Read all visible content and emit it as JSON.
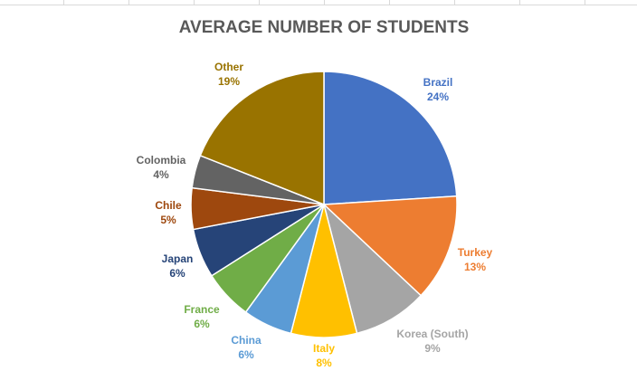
{
  "chart_data": {
    "type": "pie",
    "title": "AVERAGE NUMBER OF STUDENTS",
    "slices": [
      {
        "label": "Brazil",
        "value": 24,
        "value_label": "24%",
        "color": "#4472C4"
      },
      {
        "label": "Turkey",
        "value": 13,
        "value_label": "13%",
        "color": "#ED7D31"
      },
      {
        "label": "Korea (South)",
        "value": 9,
        "value_label": "9%",
        "color": "#A5A5A5"
      },
      {
        "label": "Italy",
        "value": 8,
        "value_label": "8%",
        "color": "#FFC000"
      },
      {
        "label": "China",
        "value": 6,
        "value_label": "6%",
        "color": "#5B9BD5"
      },
      {
        "label": "France",
        "value": 6,
        "value_label": "6%",
        "color": "#70AD47"
      },
      {
        "label": "Japan",
        "value": 6,
        "value_label": "6%",
        "color": "#264478"
      },
      {
        "label": "Chile",
        "value": 5,
        "value_label": "5%",
        "color": "#9E480E"
      },
      {
        "label": "Colombia",
        "value": 4,
        "value_label": "4%",
        "color": "#636363"
      },
      {
        "label": "Other",
        "value": 19,
        "value_label": "19%",
        "color": "#997300"
      }
    ],
    "start_angle_deg": 0,
    "direction": "clockwise",
    "legend": "none",
    "data_labels": "outside"
  }
}
